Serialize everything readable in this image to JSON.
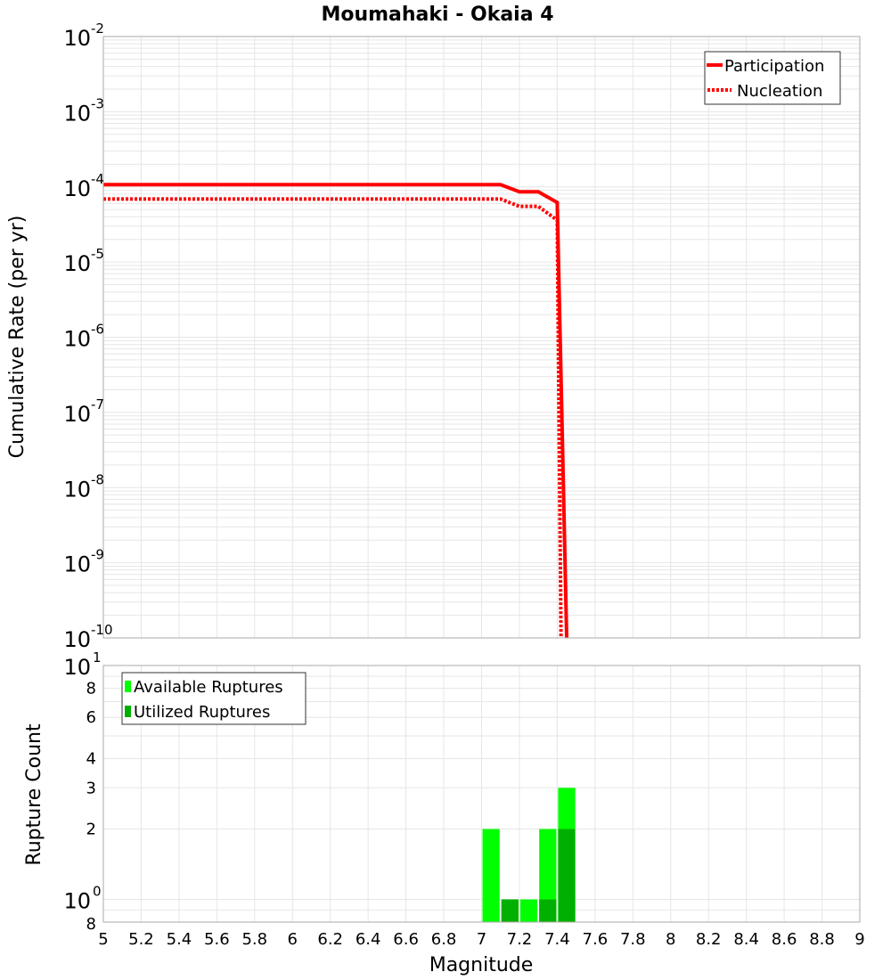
{
  "title": "Moumahaki - Okaia 4",
  "colors": {
    "participation": "#ff0000",
    "nucleation": "#ff0000",
    "available": "#00ff00",
    "utilized": "#00b000",
    "grid": "#e6e6e6",
    "frame": "#aaaaaa"
  },
  "chart_data": [
    {
      "type": "line",
      "title": "Moumahaki - Okaia 4",
      "xlabel": "Magnitude",
      "ylabel": "Cumulative Rate (per yr)",
      "yscale": "log",
      "xlim": [
        5,
        9
      ],
      "ylim": [
        1e-10,
        0.01
      ],
      "grid": true,
      "legend_position": "upper right",
      "y_tick_labels": [
        "10^-2",
        "10^-3",
        "10^-4",
        "10^-5",
        "10^-6",
        "10^-7",
        "10^-8",
        "10^-9",
        "10^-10"
      ],
      "series": [
        {
          "name": "Participation",
          "style": "solid",
          "x": [
            5.0,
            7.1,
            7.2,
            7.3,
            7.4,
            7.45
          ],
          "y": [
            0.000107,
            0.000107,
            8.6e-05,
            8.6e-05,
            6.2e-05,
            1e-10
          ]
        },
        {
          "name": "Nucleation",
          "style": "dotted",
          "x": [
            5.0,
            7.1,
            7.2,
            7.3,
            7.4,
            7.42
          ],
          "y": [
            6.9e-05,
            6.9e-05,
            5.5e-05,
            5.5e-05,
            3.6e-05,
            1e-10
          ]
        }
      ]
    },
    {
      "type": "bar",
      "xlabel": "Magnitude",
      "ylabel": "Rupture Count",
      "yscale": "log",
      "xlim": [
        5,
        9
      ],
      "ylim": [
        0.8,
        10
      ],
      "grid": true,
      "legend_position": "upper left",
      "x_ticks": [
        5,
        5.2,
        5.4,
        5.6,
        5.8,
        6,
        6.2,
        6.4,
        6.6,
        6.8,
        7,
        7.2,
        7.4,
        7.6,
        7.8,
        8,
        8.2,
        8.4,
        8.6,
        8.8,
        9
      ],
      "y_tick_labels": [
        "10^1",
        "8",
        "6",
        "4",
        "3",
        "2",
        "10^0",
        "8"
      ],
      "categories": [
        7.05,
        7.15,
        7.25,
        7.35,
        7.45
      ],
      "bin_width": 0.1,
      "series": [
        {
          "name": "Available Ruptures",
          "values": [
            2,
            1,
            1,
            2,
            3
          ]
        },
        {
          "name": "Utilized Ruptures",
          "values": [
            0,
            1,
            0,
            1,
            2
          ]
        }
      ]
    }
  ],
  "top_plot": {
    "ylabel": "Cumulative Rate (per yr)",
    "legend": [
      "Participation",
      "Nucleation"
    ]
  },
  "bottom_plot": {
    "ylabel": "Rupture Count",
    "xlabel": "Magnitude",
    "legend": [
      "Available Ruptures",
      "Utilized Ruptures"
    ]
  }
}
